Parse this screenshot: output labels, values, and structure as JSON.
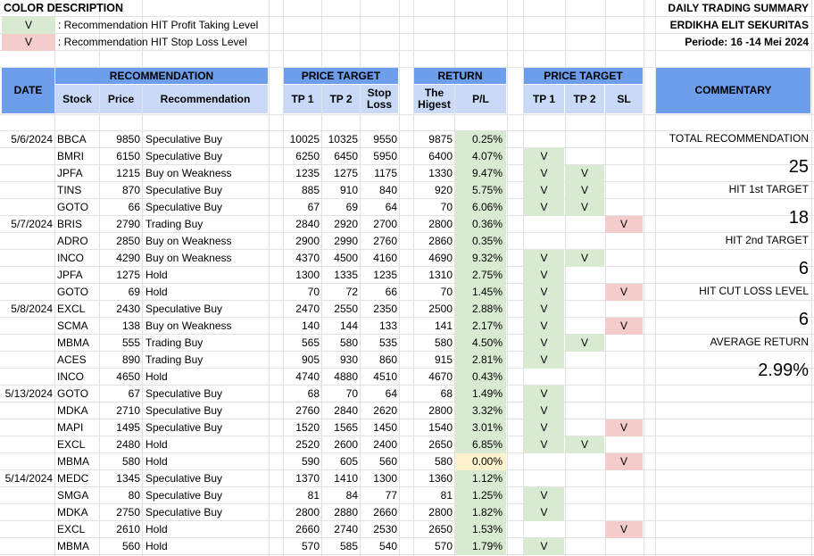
{
  "legend": {
    "title": "COLOR DESCRIPTION",
    "items": [
      {
        "mark": "V",
        "text": ": Recommendation HIT Profit Taking Level",
        "color": "#d9ead3"
      },
      {
        "mark": "V",
        "text": ": Recommendation HIT Stop Loss Level",
        "color": "#f4cccc"
      }
    ]
  },
  "summary": {
    "title": "DAILY TRADING SUMMARY",
    "company": "ERDIKHA ELIT SEKURITAS",
    "period": "Periode:  16 -14 Mei 2024"
  },
  "headers": {
    "date": "DATE",
    "recommendation_group": "RECOMMENDATION",
    "stock": "Stock",
    "price": "Price",
    "recommendation": "Recommendation",
    "price_target_group": "PRICE TARGET",
    "tp1": "TP 1",
    "tp2": "TP 2",
    "stop_loss": "Stop Loss",
    "return_group": "RETURN",
    "highest": "The Higest",
    "pl": "P/L",
    "price_target_group2": "PRICE TARGET",
    "tp1b": "TP 1",
    "tp2b": "TP 2",
    "sl": "SL",
    "commentary": "COMMENTARY"
  },
  "rows": [
    {
      "date": "5/6/2024",
      "stock": "BBCA",
      "price": "9850",
      "rec": "Speculative Buy",
      "tp1": "10025",
      "tp2": "10325",
      "sl": "9550",
      "high": "9875",
      "pl": "0.25%",
      "pl_color": "green",
      "h1": "",
      "h2": "",
      "hs": ""
    },
    {
      "date": "",
      "stock": "BMRI",
      "price": "6150",
      "rec": "Speculative Buy",
      "tp1": "6250",
      "tp2": "6450",
      "sl": "5950",
      "high": "6400",
      "pl": "4.07%",
      "pl_color": "green",
      "h1": "V",
      "h2": "",
      "hs": ""
    },
    {
      "date": "",
      "stock": "JPFA",
      "price": "1215",
      "rec": "Buy on Weakness",
      "tp1": "1235",
      "tp2": "1275",
      "sl": "1175",
      "high": "1330",
      "pl": "9.47%",
      "pl_color": "green",
      "h1": "V",
      "h2": "V",
      "hs": ""
    },
    {
      "date": "",
      "stock": "TINS",
      "price": "870",
      "rec": "Speculative Buy",
      "tp1": "885",
      "tp2": "910",
      "sl": "840",
      "high": "920",
      "pl": "5.75%",
      "pl_color": "green",
      "h1": "V",
      "h2": "V",
      "hs": ""
    },
    {
      "date": "",
      "stock": "GOTO",
      "price": "66",
      "rec": "Speculative Buy",
      "tp1": "67",
      "tp2": "69",
      "sl": "64",
      "high": "70",
      "pl": "6.06%",
      "pl_color": "green",
      "h1": "V",
      "h2": "V",
      "hs": ""
    },
    {
      "date": "5/7/2024",
      "stock": "BRIS",
      "price": "2790",
      "rec": "Trading Buy",
      "tp1": "2840",
      "tp2": "2920",
      "sl": "2700",
      "high": "2800",
      "pl": "0.36%",
      "pl_color": "green",
      "h1": "",
      "h2": "",
      "hs": "V"
    },
    {
      "date": "",
      "stock": "ADRO",
      "price": "2850",
      "rec": "Buy on Weakness",
      "tp1": "2900",
      "tp2": "2990",
      "sl": "2760",
      "high": "2860",
      "pl": "0.35%",
      "pl_color": "green",
      "h1": "",
      "h2": "",
      "hs": ""
    },
    {
      "date": "",
      "stock": "INCO",
      "price": "4290",
      "rec": "Buy on Weakness",
      "tp1": "4370",
      "tp2": "4500",
      "sl": "4160",
      "high": "4690",
      "pl": "9.32%",
      "pl_color": "green",
      "h1": "V",
      "h2": "V",
      "hs": ""
    },
    {
      "date": "",
      "stock": "JPFA",
      "price": "1275",
      "rec": "Hold",
      "tp1": "1300",
      "tp2": "1335",
      "sl": "1235",
      "high": "1310",
      "pl": "2.75%",
      "pl_color": "green",
      "h1": "V",
      "h2": "",
      "hs": ""
    },
    {
      "date": "",
      "stock": "GOTO",
      "price": "69",
      "rec": "Hold",
      "tp1": "70",
      "tp2": "72",
      "sl": "66",
      "high": "70",
      "pl": "1.45%",
      "pl_color": "green",
      "h1": "V",
      "h2": "",
      "hs": "V"
    },
    {
      "date": "5/8/2024",
      "stock": "EXCL",
      "price": "2430",
      "rec": "Speculative Buy",
      "tp1": "2470",
      "tp2": "2550",
      "sl": "2350",
      "high": "2500",
      "pl": "2.88%",
      "pl_color": "green",
      "h1": "V",
      "h2": "",
      "hs": ""
    },
    {
      "date": "",
      "stock": "SCMA",
      "price": "138",
      "rec": "Buy on Weakness",
      "tp1": "140",
      "tp2": "144",
      "sl": "133",
      "high": "141",
      "pl": "2.17%",
      "pl_color": "green",
      "h1": "V",
      "h2": "",
      "hs": "V"
    },
    {
      "date": "",
      "stock": "MBMA",
      "price": "555",
      "rec": "Trading Buy",
      "tp1": "565",
      "tp2": "580",
      "sl": "535",
      "high": "580",
      "pl": "4.50%",
      "pl_color": "green",
      "h1": "V",
      "h2": "V",
      "hs": ""
    },
    {
      "date": "",
      "stock": "ACES",
      "price": "890",
      "rec": "Trading Buy",
      "tp1": "905",
      "tp2": "930",
      "sl": "860",
      "high": "915",
      "pl": "2.81%",
      "pl_color": "green",
      "h1": "V",
      "h2": "",
      "hs": ""
    },
    {
      "date": "",
      "stock": "INCO",
      "price": "4650",
      "rec": "Hold",
      "tp1": "4740",
      "tp2": "4880",
      "sl": "4510",
      "high": "4670",
      "pl": "0.43%",
      "pl_color": "green",
      "h1": "",
      "h2": "",
      "hs": ""
    },
    {
      "date": "5/13/2024",
      "stock": "GOTO",
      "price": "67",
      "rec": "Speculative Buy",
      "tp1": "68",
      "tp2": "70",
      "sl": "64",
      "high": "68",
      "pl": "1.49%",
      "pl_color": "green",
      "h1": "V",
      "h2": "",
      "hs": ""
    },
    {
      "date": "",
      "stock": "MDKA",
      "price": "2710",
      "rec": "Speculative Buy",
      "tp1": "2760",
      "tp2": "2840",
      "sl": "2620",
      "high": "2800",
      "pl": "3.32%",
      "pl_color": "green",
      "h1": "V",
      "h2": "",
      "hs": ""
    },
    {
      "date": "",
      "stock": "MAPI",
      "price": "1495",
      "rec": "Speculative Buy",
      "tp1": "1520",
      "tp2": "1565",
      "sl": "1450",
      "high": "1540",
      "pl": "3.01%",
      "pl_color": "green",
      "h1": "V",
      "h2": "",
      "hs": "V"
    },
    {
      "date": "",
      "stock": "EXCL",
      "price": "2480",
      "rec": "Hold",
      "tp1": "2520",
      "tp2": "2600",
      "sl": "2400",
      "high": "2650",
      "pl": "6.85%",
      "pl_color": "green",
      "h1": "V",
      "h2": "V",
      "hs": ""
    },
    {
      "date": "",
      "stock": "MBMA",
      "price": "580",
      "rec": "Hold",
      "tp1": "590",
      "tp2": "605",
      "sl": "560",
      "high": "580",
      "pl": "0.00%",
      "pl_color": "yellow",
      "h1": "",
      "h2": "",
      "hs": "V"
    },
    {
      "date": "5/14/2024",
      "stock": "MEDC",
      "price": "1345",
      "rec": "Speculative Buy",
      "tp1": "1370",
      "tp2": "1410",
      "sl": "1300",
      "high": "1360",
      "pl": "1.12%",
      "pl_color": "green",
      "h1": "",
      "h2": "",
      "hs": ""
    },
    {
      "date": "",
      "stock": "SMGA",
      "price": "80",
      "rec": "Speculative Buy",
      "tp1": "81",
      "tp2": "84",
      "sl": "77",
      "high": "81",
      "pl": "1.25%",
      "pl_color": "green",
      "h1": "V",
      "h2": "",
      "hs": ""
    },
    {
      "date": "",
      "stock": "MDKA",
      "price": "2750",
      "rec": "Speculative Buy",
      "tp1": "2800",
      "tp2": "2880",
      "sl": "2660",
      "high": "2800",
      "pl": "1.82%",
      "pl_color": "green",
      "h1": "V",
      "h2": "",
      "hs": ""
    },
    {
      "date": "",
      "stock": "EXCL",
      "price": "2610",
      "rec": "Hold",
      "tp1": "2660",
      "tp2": "2740",
      "sl": "2530",
      "high": "2650",
      "pl": "1.53%",
      "pl_color": "green",
      "h1": "",
      "h2": "",
      "hs": "V"
    },
    {
      "date": "",
      "stock": "MBMA",
      "price": "560",
      "rec": "Hold",
      "tp1": "570",
      "tp2": "585",
      "sl": "540",
      "high": "570",
      "pl": "1.79%",
      "pl_color": "green",
      "h1": "V",
      "h2": "",
      "hs": ""
    }
  ],
  "commentary": [
    {
      "label": "TOTAL RECOMMENDATION",
      "value": "25"
    },
    {
      "label": "HIT 1st TARGET",
      "value": "18"
    },
    {
      "label": "HIT 2nd TARGET",
      "value": "6"
    },
    {
      "label": "HIT CUT LOSS LEVEL",
      "value": "6"
    },
    {
      "label": "AVERAGE RETURN",
      "value": "2.99%"
    }
  ],
  "colors": {
    "header_light": "#c9daf8",
    "header_dark": "#6d9eeb",
    "hit_profit": "#d9ead3",
    "hit_stoploss": "#f4cccc",
    "neutral": "#fff2cc"
  }
}
